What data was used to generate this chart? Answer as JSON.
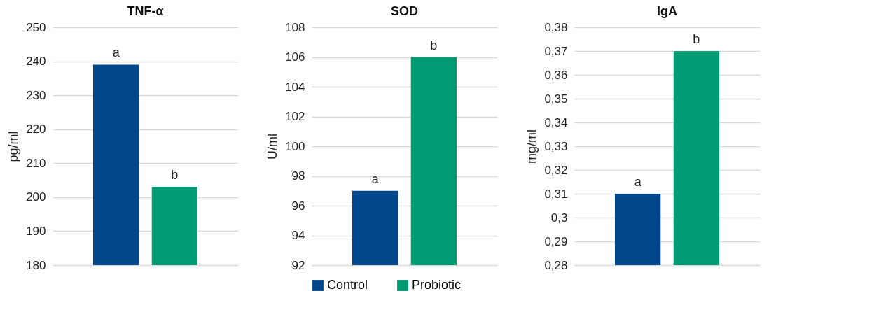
{
  "chart_data": [
    {
      "type": "bar",
      "title": "TNF-α",
      "ylabel": "pg/ml",
      "categories": [
        null
      ],
      "series": [
        {
          "color": "#00468b",
          "values": [
            239
          ]
        },
        {
          "color": "#009b72",
          "values": [
            203
          ]
        }
      ],
      "ylim": [
        180,
        250
      ],
      "yticks": [
        180,
        190,
        200,
        210,
        220,
        230,
        240,
        250
      ],
      "grid": "y",
      "legend": false,
      "annotations": [
        "a",
        "b"
      ]
    },
    {
      "type": "bar",
      "title": "SOD",
      "ylabel": "U/ml",
      "categories": [
        null
      ],
      "series": [
        {
          "name": "Control",
          "color": "#00468b",
          "values": [
            97
          ]
        },
        {
          "name": "Probiotic",
          "color": "#009b72",
          "values": [
            106
          ]
        }
      ],
      "ylim": [
        92,
        108
      ],
      "yticks": [
        92,
        94,
        96,
        98,
        100,
        102,
        104,
        106,
        108
      ],
      "grid": "y",
      "legend": "bottom",
      "annotations": [
        "a",
        "b"
      ]
    },
    {
      "type": "bar",
      "title": "IgA",
      "ylabel": "mg/ml",
      "categories": [
        null
      ],
      "series": [
        {
          "color": "#00468b",
          "values": [
            0.31
          ]
        },
        {
          "color": "#009b72",
          "values": [
            0.37
          ]
        }
      ],
      "ylim": [
        0.28,
        0.38
      ],
      "yticks": [
        {
          "value": 0.28,
          "label": "0,28"
        },
        {
          "value": 0.29,
          "label": "0,29"
        },
        {
          "value": 0.3,
          "label": "0,3"
        },
        {
          "value": 0.31,
          "label": "0,31"
        },
        {
          "value": 0.32,
          "label": "0,32"
        },
        {
          "value": 0.33,
          "label": "0,33"
        },
        {
          "value": 0.34,
          "label": "0,34"
        },
        {
          "value": 0.35,
          "label": "0,35"
        },
        {
          "value": 0.36,
          "label": "0,36"
        },
        {
          "value": 0.37,
          "label": "0,37"
        },
        {
          "value": 0.38,
          "label": "0,38"
        }
      ],
      "grid": "y",
      "legend": false,
      "annotations": [
        "a",
        "b"
      ]
    }
  ]
}
